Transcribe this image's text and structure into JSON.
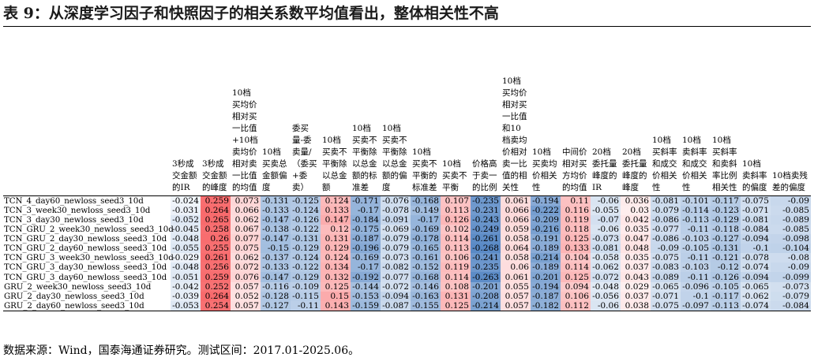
{
  "title": "表 9：从深度学习因子和快照因子的相关系数平均值看出，整体相关性不高",
  "columns": [
    "3秒成交金额的IR",
    "3秒成交金额的峰度",
    "10档买均价相对买一比值+10档卖均价相对卖一比值的均值",
    "10档买卖总金额偏度",
    "委买量-委卖量/（委买+委卖）",
    "10档买卖不平衡除以总金额",
    "10档买卖不平衡除以总金额的标准差",
    "10档买卖不平衡除以总金额的偏度",
    "10档买卖不平衡的标准差",
    "10档买卖不平衡",
    "价格高于卖一的比例",
    "10档买均价相对买一比值和10档卖均价相对卖一比值的相关性",
    "10档买卖均价相关性",
    "中间价相对买方均价的均值",
    "20档委托量峰度的IR",
    "20档委托量峰度的峰度",
    "10档买斜率和成交价相关性",
    "10档卖斜率和成交价相关性",
    "10档买斜率和卖斜率比例相关性",
    "10档卖斜率的偏度",
    "10档卖残差的偏度"
  ],
  "rows": [
    {
      "name": "TCN_4_day60_newloss_seed3_10d",
      "values": [
        "-0.024",
        "0.259",
        "0.073",
        "-0.131",
        "-0.125",
        "0.124",
        "-0.171",
        "-0.076",
        "-0.168",
        "0.107",
        "-0.235",
        "0.061",
        "-0.194",
        "0.11",
        "-0.06",
        "0.036",
        "-0.081",
        "-0.101",
        "-0.117",
        "-0.075",
        "-0.09"
      ]
    },
    {
      "name": "TCN_3_week30_newloss_seed3_10d",
      "values": [
        "-0.031",
        "0.264",
        "0.066",
        "-0.133",
        "-0.124",
        "0.133",
        "-0.17",
        "-0.078",
        "-0.149",
        "0.113",
        "-0.231",
        "0.066",
        "-0.222",
        "0.116",
        "-0.055",
        "0.03",
        "-0.079",
        "-0.114",
        "-0.123",
        "-0.071",
        "-0.085"
      ]
    },
    {
      "name": "TCN_3_day30_newloss_seed3_10d",
      "values": [
        "-0.052",
        "0.265",
        "0.062",
        "-0.147",
        "-0.126",
        "0.147",
        "-0.184",
        "-0.091",
        "-0.17",
        "0.126",
        "-0.243",
        "0.066",
        "-0.209",
        "0.119",
        "-0.07",
        "0.042",
        "-0.086",
        "-0.113",
        "-0.129",
        "-0.081",
        "-0.089"
      ]
    },
    {
      "name": "TCN_GRU_2_week30_newloss_seed3_10d",
      "values": [
        "-0.045",
        "0.258",
        "0.067",
        "-0.138",
        "-0.122",
        "0.12",
        "-0.175",
        "-0.069",
        "-0.169",
        "0.102",
        "-0.249",
        "0.059",
        "-0.216",
        "0.118",
        "-0.06",
        "0.035",
        "-0.077",
        "-0.11",
        "-0.118",
        "-0.084",
        "-0.085"
      ]
    },
    {
      "name": "TCN_GRU_2_day30_newloss_seed3_10d",
      "values": [
        "-0.048",
        "0.26",
        "0.077",
        "-0.147",
        "-0.131",
        "0.131",
        "-0.187",
        "-0.079",
        "-0.178",
        "0.114",
        "-0.261",
        "0.058",
        "-0.191",
        "0.125",
        "-0.073",
        "0.047",
        "-0.086",
        "-0.103",
        "-0.127",
        "-0.094",
        "-0.098"
      ]
    },
    {
      "name": "TCN_GRU_2_day60_newloss_seed3_10d",
      "values": [
        "-0.055",
        "0.255",
        "0.075",
        "-0.15",
        "-0.129",
        "0.129",
        "-0.196",
        "-0.079",
        "-0.165",
        "0.113",
        "-0.268",
        "0.064",
        "-0.189",
        "0.133",
        "-0.081",
        "0.048",
        "-0.09",
        "-0.105",
        "-0.131",
        "-0.1",
        "-0.104"
      ]
    },
    {
      "name": "TCN_GRU_3_week30_newloss_seed3_10d",
      "values": [
        "-0.029",
        "0.261",
        "0.062",
        "-0.137",
        "-0.124",
        "0.124",
        "-0.169",
        "-0.073",
        "-0.161",
        "0.106",
        "-0.241",
        "0.058",
        "-0.214",
        "0.104",
        "-0.058",
        "0.035",
        "-0.075",
        "-0.11",
        "-0.121",
        "-0.078",
        "-0.08"
      ]
    },
    {
      "name": "TCN_GRU_3_day30_newloss_seed3_10d",
      "values": [
        "-0.048",
        "0.256",
        "0.072",
        "-0.133",
        "-0.122",
        "0.134",
        "-0.17",
        "-0.082",
        "-0.152",
        "0.119",
        "-0.235",
        "0.06",
        "-0.189",
        "0.114",
        "-0.062",
        "0.037",
        "-0.083",
        "-0.103",
        "-0.12",
        "-0.074",
        "-0.09"
      ]
    },
    {
      "name": "TCN_GRU_3_day60_newloss_seed3_10d",
      "values": [
        "-0.051",
        "0.259",
        "0.076",
        "-0.147",
        "-0.129",
        "0.132",
        "-0.192",
        "-0.077",
        "-0.168",
        "0.114",
        "-0.263",
        "0.061",
        "-0.201",
        "0.125",
        "-0.072",
        "0.043",
        "-0.089",
        "-0.11",
        "-0.126",
        "-0.094",
        "-0.099"
      ]
    },
    {
      "name": "GRU_2_week30_newloss_seed3_10d",
      "values": [
        "-0.042",
        "0.252",
        "0.057",
        "-0.116",
        "-0.109",
        "0.125",
        "-0.144",
        "-0.072",
        "-0.146",
        "0.108",
        "-0.201",
        "0.055",
        "-0.194",
        "0.094",
        "-0.048",
        "0.029",
        "-0.065",
        "-0.096",
        "-0.105",
        "-0.065",
        "-0.073"
      ]
    },
    {
      "name": "GRU_2_day30_newloss_seed3_10d",
      "values": [
        "-0.039",
        "0.264",
        "0.052",
        "-0.128",
        "-0.115",
        "0.15",
        "-0.153",
        "-0.094",
        "-0.163",
        "0.131",
        "-0.208",
        "0.057",
        "-0.187",
        "0.106",
        "-0.056",
        "0.037",
        "-0.071",
        "-0.1",
        "-0.117",
        "-0.062",
        "-0.079"
      ]
    },
    {
      "name": "GRU_2_day60_newloss_seed3_10d",
      "values": [
        "-0.053",
        "0.254",
        "0.057",
        "-0.127",
        "-0.11",
        "0.143",
        "-0.159",
        "-0.087",
        "-0.155",
        "0.125",
        "-0.214",
        "0.057",
        "-0.182",
        "0.112",
        "-0.06",
        "0.038",
        "-0.075",
        "-0.097",
        "-0.113",
        "-0.074",
        "-0.084"
      ]
    }
  ],
  "source": "数据来源：Wind，国泰海通证券研究。测试区间：2017.01-2025.06。",
  "colors": {
    "positive": "#f8696b",
    "negative": "#5a8ac6",
    "neutral": "#ffffff"
  }
}
